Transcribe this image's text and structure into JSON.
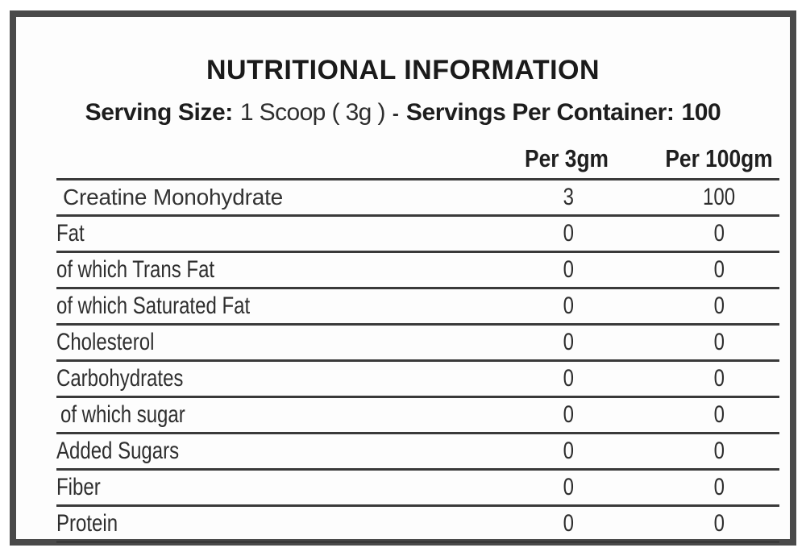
{
  "title": "NUTRITIONAL INFORMATION",
  "serving": {
    "size_label": "Serving Size:",
    "size_value": "1 Scoop ( 3g )",
    "separator": "-",
    "container_label": "Servings Per Container:",
    "container_value": "100"
  },
  "table": {
    "columns": [
      "Per 3gm",
      "Per 100gm"
    ],
    "rows": [
      {
        "label": "Creatine Monohydrate",
        "per_3gm": "3",
        "per_100gm": "100"
      },
      {
        "label": "Fat",
        "per_3gm": "0",
        "per_100gm": "0"
      },
      {
        "label": "of which Trans Fat",
        "per_3gm": "0",
        "per_100gm": "0"
      },
      {
        "label": "of which Saturated Fat",
        "per_3gm": "0",
        "per_100gm": "0"
      },
      {
        "label": "Cholesterol",
        "per_3gm": "0",
        "per_100gm": "0"
      },
      {
        "label": "Carbohydrates",
        "per_3gm": "0",
        "per_100gm": "0"
      },
      {
        "label": "of which sugar",
        "per_3gm": "0",
        "per_100gm": "0"
      },
      {
        "label": "Added Sugars",
        "per_3gm": "0",
        "per_100gm": "0"
      },
      {
        "label": "Fiber",
        "per_3gm": "0",
        "per_100gm": "0"
      },
      {
        "label": "Protein",
        "per_3gm": "0",
        "per_100gm": "0"
      }
    ]
  },
  "colors": {
    "outer_border": "#4a4a4a",
    "rule_line": "#3a3a3a",
    "heading_text": "#1a1a1a",
    "body_text": "#2e2e2e",
    "background": "#fdfdfd"
  }
}
